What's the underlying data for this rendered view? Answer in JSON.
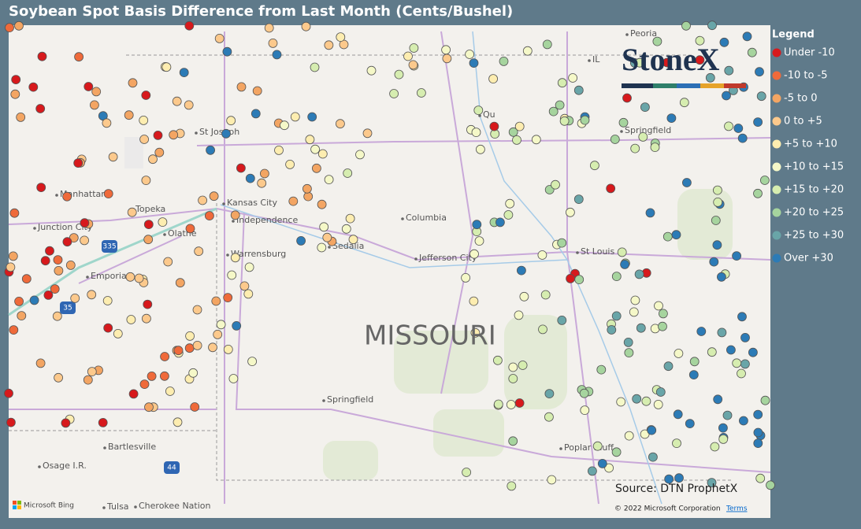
{
  "title": "Soybean Spot Basis Difference from Last Month (Cents/Bushel)",
  "legend": {
    "title": "Legend",
    "items": [
      {
        "label": "Under -10",
        "color": "#d7191c"
      },
      {
        "label": "-10 to -5",
        "color": "#ef6a3a"
      },
      {
        "label": "-5 to 0",
        "color": "#f3a563"
      },
      {
        "label": "0 to +5",
        "color": "#fcc98c"
      },
      {
        "label": "+5 to +10",
        "color": "#fdedb0"
      },
      {
        "label": "+10 to +15",
        "color": "#f5f8c8"
      },
      {
        "label": "+15 to +20",
        "color": "#d6edb0"
      },
      {
        "label": "+20 to +25",
        "color": "#a6d49e"
      },
      {
        "label": "+25 to +30",
        "color": "#69a5a8"
      },
      {
        "label": "Over +30",
        "color": "#2c7bb6"
      }
    ]
  },
  "map": {
    "state_label": "MISSOURI",
    "places": [
      "Peoria",
      "Qu",
      "St Joseph",
      "Springfield",
      "Manhattan",
      "Topeka",
      "Kansas City",
      "Independence",
      "Junction City",
      "Olathe",
      "Columbia",
      "Sedalia",
      "Warrensburg",
      "Jefferson City",
      "St Louis",
      "Emporia",
      "Springfield",
      "Bartlesville",
      "Poplar Bluff",
      "Osage I.R.",
      "Tulsa",
      "Cherokee Nation",
      "IL"
    ],
    "shields": [
      "335",
      "35",
      "44"
    ],
    "logo": "StoneX",
    "source": "Source: DTN ProphetX",
    "provider": "Microsoft Bing",
    "copyright": "© 2022 Microsoft Corporation",
    "terms": "Terms"
  }
}
